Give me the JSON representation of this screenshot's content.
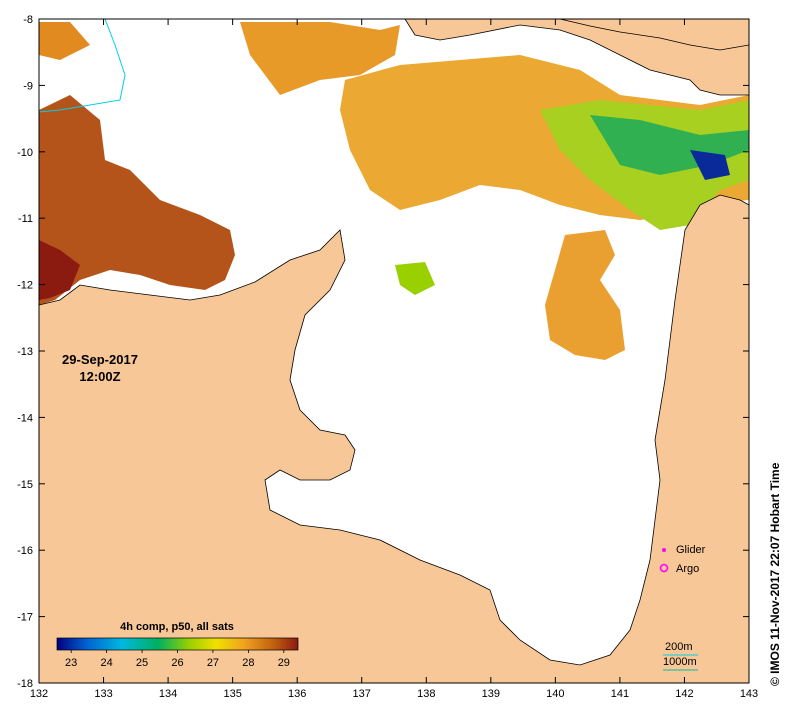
{
  "map": {
    "date": "29-Sep-2017",
    "time": "12:00Z",
    "lon_ticks": [
      "132",
      "133",
      "134",
      "135",
      "136",
      "137",
      "138",
      "139",
      "140",
      "141",
      "142",
      "143"
    ],
    "lat_ticks": [
      "-8",
      "-9",
      "-10",
      "-11",
      "-12",
      "-13",
      "-14",
      "-15",
      "-16",
      "-17",
      "-18"
    ],
    "lon_range": [
      132,
      143
    ],
    "lat_range": [
      -18,
      -8
    ],
    "colors": {
      "land": "#f7c797",
      "sea_nodata": "#ffffff",
      "coast": "#000000",
      "contour_200m": "#00cfe8",
      "contour_1000m": "#00bfa0"
    }
  },
  "legend": {
    "glider_label": "Glider",
    "argo_label": "Argo",
    "glider_color": "#ff00ff",
    "argo_color": "#ff00ff",
    "contour_200m_label": "200m",
    "contour_1000m_label": "1000m"
  },
  "colorbar": {
    "title": "4h comp, p50, all sats",
    "ticks": [
      "23",
      "24",
      "25",
      "26",
      "27",
      "28",
      "29"
    ],
    "range": [
      22.6,
      29.4
    ],
    "stops": [
      "#000080",
      "#0060d0",
      "#00b8e0",
      "#00b060",
      "#9ad000",
      "#f0e000",
      "#f0a020",
      "#c06010",
      "#8b1a10"
    ]
  },
  "credit": "© IMOS 11-Nov-2017 22:07 Hobart Time"
}
